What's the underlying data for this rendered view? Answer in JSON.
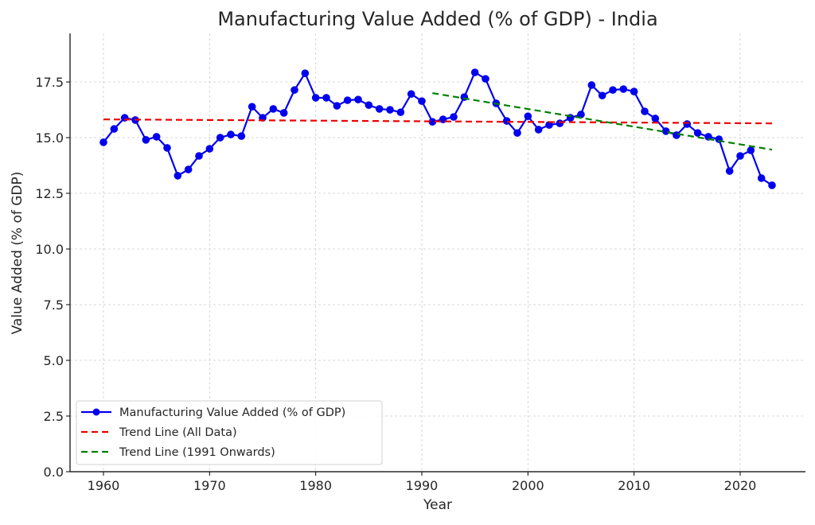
{
  "chart_data": {
    "type": "line",
    "title": "Manufacturing Value Added (% of GDP) - India",
    "xlabel": "Year",
    "ylabel": "Value Added (% of GDP)",
    "xlim": [
      1956.85,
      2026.15
    ],
    "ylim": [
      0,
      19.68
    ],
    "xticks": [
      1960,
      1970,
      1980,
      1990,
      2000,
      2010,
      2020
    ],
    "yticks": [
      "0.0",
      "2.5",
      "5.0",
      "7.5",
      "10.0",
      "12.5",
      "15.0",
      "17.5"
    ],
    "grid": true,
    "legend_position": "lower-left",
    "series": [
      {
        "name": "Manufacturing Value Added (% of GDP)",
        "color": "#0000ee",
        "style": "solid-marker",
        "x": [
          1960,
          1961,
          1962,
          1963,
          1964,
          1965,
          1966,
          1967,
          1968,
          1969,
          1970,
          1971,
          1972,
          1973,
          1974,
          1975,
          1976,
          1977,
          1978,
          1979,
          1980,
          1981,
          1982,
          1983,
          1984,
          1985,
          1986,
          1987,
          1988,
          1989,
          1990,
          1991,
          1992,
          1993,
          1994,
          1995,
          1996,
          1997,
          1998,
          1999,
          2000,
          2001,
          2002,
          2003,
          2004,
          2005,
          2006,
          2007,
          2008,
          2009,
          2010,
          2011,
          2012,
          2013,
          2014,
          2015,
          2016,
          2017,
          2018,
          2019,
          2020,
          2021,
          2022,
          2023
        ],
        "values": [
          14.79,
          15.39,
          15.89,
          15.79,
          14.9,
          15.04,
          14.54,
          13.29,
          13.57,
          14.18,
          14.5,
          15.0,
          15.14,
          15.07,
          16.39,
          15.89,
          16.29,
          16.11,
          17.14,
          17.89,
          16.79,
          16.79,
          16.43,
          16.68,
          16.71,
          16.46,
          16.29,
          16.25,
          16.14,
          16.96,
          16.64,
          15.71,
          15.82,
          15.93,
          16.82,
          17.93,
          17.64,
          16.54,
          15.75,
          15.21,
          15.96,
          15.36,
          15.57,
          15.64,
          15.89,
          16.04,
          17.36,
          16.89,
          17.14,
          17.18,
          17.07,
          16.18,
          15.86,
          15.29,
          15.11,
          15.61,
          15.21,
          15.04,
          14.93,
          13.5,
          14.18,
          14.43,
          13.18,
          12.86
        ]
      },
      {
        "name": "Trend Line (All Data)",
        "color": "#ee0000",
        "style": "dashed",
        "x": [
          1960,
          2023
        ],
        "values": [
          15.82,
          15.64
        ]
      },
      {
        "name": "Trend Line (1991 Onwards)",
        "color": "#008000",
        "style": "dashed",
        "x": [
          1991,
          2023
        ],
        "values": [
          17.0,
          14.46
        ]
      }
    ]
  }
}
